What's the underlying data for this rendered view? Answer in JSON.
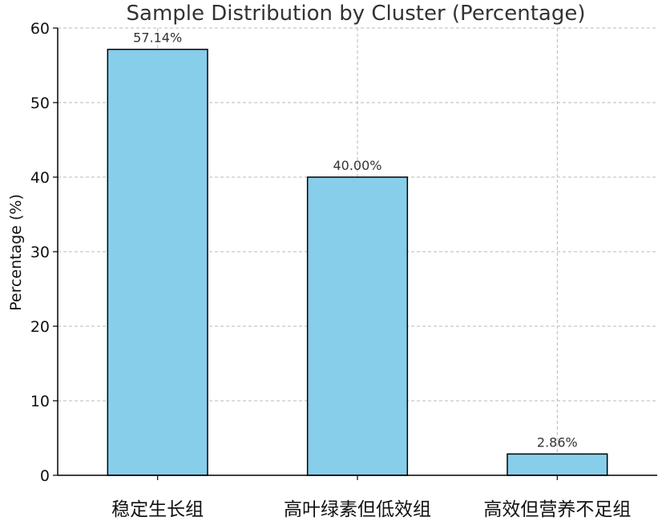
{
  "chart_data": {
    "type": "bar",
    "title": "Sample Distribution by Cluster (Percentage)",
    "xlabel": "",
    "ylabel": "Percentage (%)",
    "categories": [
      "稳定生长组",
      "高叶绿素但低效组",
      "高效但营养不足组"
    ],
    "values": [
      57.14,
      40.0,
      2.86
    ],
    "data_labels": [
      "57.14%",
      "40.00%",
      "2.86%"
    ],
    "ylim": [
      0,
      60
    ],
    "yticks": [
      0,
      10,
      20,
      30,
      40,
      50,
      60
    ],
    "grid": true,
    "bar_color": "#87ceeb",
    "edge_color": "#000000"
  }
}
